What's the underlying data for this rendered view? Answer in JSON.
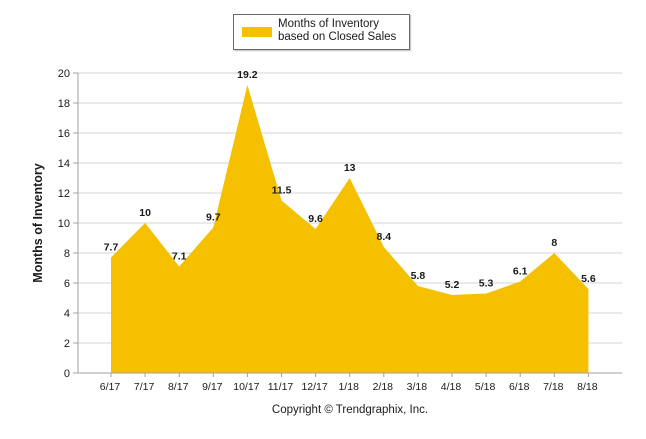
{
  "chart_data": {
    "type": "area",
    "categories": [
      "6/17",
      "7/17",
      "8/17",
      "9/17",
      "10/17",
      "11/17",
      "12/17",
      "1/18",
      "2/18",
      "3/18",
      "4/18",
      "5/18",
      "6/18",
      "7/18",
      "8/18"
    ],
    "series": [
      {
        "name": "Months of Inventory based on Closed Sales",
        "values": [
          7.7,
          10,
          7.1,
          9.7,
          19.2,
          11.5,
          9.6,
          13,
          8.4,
          5.8,
          5.2,
          5.3,
          6.1,
          8,
          5.6
        ],
        "labels": [
          "7.7",
          "10",
          "7.1",
          "9.7",
          "19.2",
          "11.5",
          "9.6",
          "13",
          "8.4",
          "5.8",
          "5.2",
          "5.3",
          "6.1",
          "8",
          "5.6"
        ]
      }
    ],
    "ylabel": "Months of Inventory",
    "xlabel": "Copyright © Trendgraphix, Inc.",
    "ylim": [
      0,
      20
    ],
    "yticks": [
      "0",
      "2",
      "4",
      "6",
      "8",
      "10",
      "12",
      "14",
      "16",
      "18",
      "20"
    ],
    "grid": true,
    "legend": "top-center",
    "colors": {
      "fill": "#f5c000",
      "grid": "#d4d4d4",
      "axis": "#a0a0a0",
      "text": "#1a1a1a"
    }
  }
}
